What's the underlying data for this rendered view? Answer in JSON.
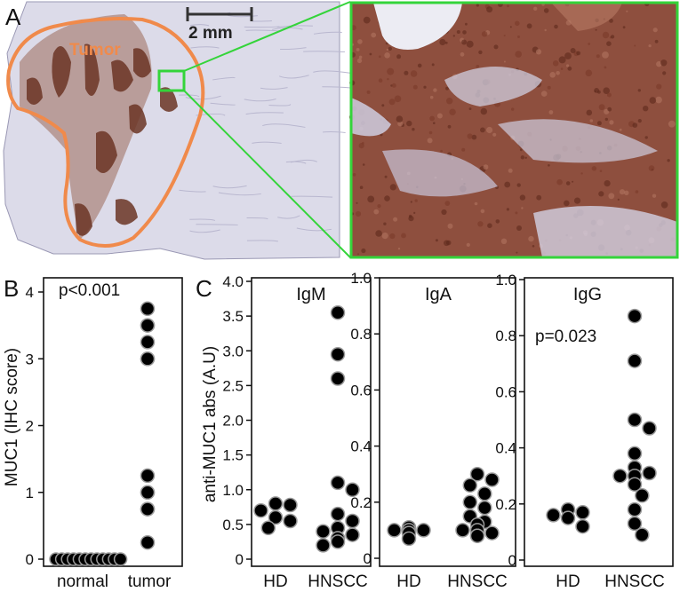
{
  "panel_a": {
    "letter": "A",
    "tumor_label": "Tumor",
    "scale_bar_label": "2 mm"
  },
  "panel_b": {
    "letter": "B"
  },
  "panel_c": {
    "letter": "C"
  },
  "colors": {
    "tissue": "#dcdbe9",
    "tissue_stroke": "#9a98b4",
    "stain": "#6b3524",
    "stain_light": "#9c6a5a",
    "tumor_outline": "#f08a4b",
    "zoom_box": "#34d43a",
    "dot_fill": "#000000",
    "dot_stroke": "#9a9a9a"
  },
  "chart_data": [
    {
      "id": "B",
      "type": "scatter",
      "ylabel": "MUC1 (IHC score)",
      "ylim": [
        0,
        4
      ],
      "yticks": [
        0,
        1,
        2,
        3,
        4
      ],
      "categories": [
        "normal",
        "tumor"
      ],
      "annotation": "p<0.001",
      "series": [
        {
          "category": "normal",
          "values": [
            0,
            0,
            0,
            0,
            0,
            0,
            0,
            0,
            0,
            0,
            0,
            0
          ]
        },
        {
          "category": "tumor",
          "values": [
            3.75,
            3.5,
            3.5,
            3.25,
            3.0,
            3.0,
            1.25,
            1.0,
            1.0,
            0.75,
            0.75,
            0.25
          ]
        }
      ],
      "grid": false
    },
    {
      "id": "IgM",
      "type": "scatter",
      "title": "IgM",
      "ylabel": "anti-MUC1 abs (A.U)",
      "ylim": [
        0,
        4
      ],
      "yticks": [
        "0",
        "0.5",
        "1.0",
        "1.5",
        "2.0",
        "2.5",
        "3.0",
        "3.5",
        "4.0"
      ],
      "categories": [
        "HD",
        "HNSCC"
      ],
      "series": [
        {
          "category": "HD",
          "values": [
            0.8,
            0.78,
            0.7,
            0.6,
            0.55,
            0.45
          ]
        },
        {
          "category": "HNSCC",
          "values": [
            3.55,
            2.95,
            2.6,
            1.1,
            1.0,
            0.65,
            0.55,
            0.45,
            0.4,
            0.35,
            0.3,
            0.3,
            0.25,
            0.2
          ]
        }
      ],
      "grid": false
    },
    {
      "id": "IgA",
      "type": "scatter",
      "title": "IgA",
      "ylim": [
        0,
        1
      ],
      "yticks": [
        "0",
        "0.2",
        "0.4",
        "0.6",
        "0.8",
        "1.0"
      ],
      "categories": [
        "HD",
        "HNSCC"
      ],
      "series": [
        {
          "category": "HD",
          "values": [
            0.11,
            0.1,
            0.1,
            0.1,
            0.09,
            0.07
          ]
        },
        {
          "category": "HNSCC",
          "values": [
            0.3,
            0.28,
            0.26,
            0.23,
            0.2,
            0.18,
            0.15,
            0.13,
            0.12,
            0.1,
            0.1,
            0.09,
            0.08,
            0.08
          ]
        }
      ],
      "grid": false
    },
    {
      "id": "IgG",
      "type": "scatter",
      "title": "IgG",
      "ylim": [
        0,
        1
      ],
      "yticks": [
        "0",
        "0.2",
        "0.4",
        "0.6",
        "0.8",
        "1.0"
      ],
      "categories": [
        "HD",
        "HNSCC"
      ],
      "annotation": "p=0.023",
      "series": [
        {
          "category": "HD",
          "values": [
            0.18,
            0.17,
            0.16,
            0.15,
            0.12
          ]
        },
        {
          "category": "HNSCC",
          "values": [
            0.87,
            0.71,
            0.5,
            0.47,
            0.38,
            0.33,
            0.31,
            0.3,
            0.3,
            0.27,
            0.23,
            0.18,
            0.13,
            0.09
          ]
        }
      ],
      "grid": false
    }
  ]
}
